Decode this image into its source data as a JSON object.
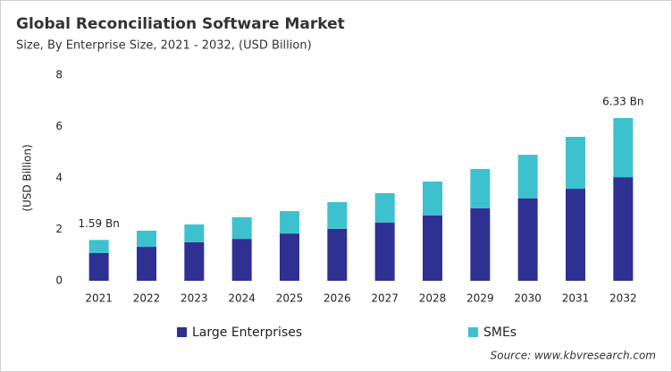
{
  "chart_data": {
    "type": "stacked_bar",
    "title": "Global Reconciliation Software Market",
    "subtitle": "Size, By Enterprise Size, 2021 - 2032, (USD Billion)",
    "y_label": "(USD Billion)",
    "categories": [
      "2021",
      "2022",
      "2023",
      "2024",
      "2025",
      "2026",
      "2027",
      "2028",
      "2029",
      "2030",
      "2031",
      "2032"
    ],
    "series": [
      {
        "name": "Large Enterprises",
        "color": "#2e3192",
        "values": [
          1.08,
          1.32,
          1.5,
          1.63,
          1.84,
          2.02,
          2.26,
          2.54,
          2.82,
          3.2,
          3.58,
          4.03
        ]
      },
      {
        "name": "SMEs",
        "color": "#3ec1cf",
        "values": [
          0.51,
          0.63,
          0.69,
          0.84,
          0.87,
          1.04,
          1.15,
          1.32,
          1.53,
          1.7,
          2.02,
          2.3
        ]
      }
    ],
    "annotations": [
      {
        "category": "2021",
        "text": "1.59 Bn"
      },
      {
        "category": "2032",
        "text": "6.33 Bn"
      }
    ],
    "ylim": [
      0,
      8
    ],
    "yticks": [
      0,
      2,
      4,
      6,
      8
    ],
    "grid": false,
    "legend": "bottom",
    "source": "Source: www.kbvresearch.com"
  }
}
